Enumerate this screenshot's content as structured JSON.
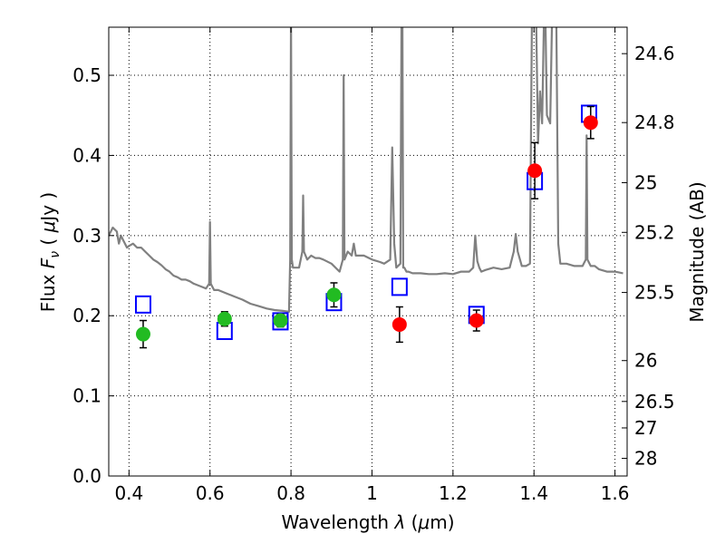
{
  "chart_data": {
    "type": "scatter",
    "xlabel": "Wavelength  λ (μm)",
    "ylabel": "Flux  F_ν  ( μJy )",
    "ylabel_right": "Magnitude (AB)",
    "xlim": [
      0.35,
      1.63
    ],
    "ylim": [
      0.0,
      0.56
    ],
    "grid": true,
    "x_ticks": [
      0.4,
      0.6,
      0.8,
      1.0,
      1.2,
      1.4,
      1.6
    ],
    "x_tick_labels": [
      "0.4",
      "0.6",
      "0.8",
      "1",
      "1.2",
      "1.4",
      "1.6"
    ],
    "y_ticks": [
      0.0,
      0.1,
      0.2,
      0.3,
      0.4,
      0.5
    ],
    "y_tick_labels": [
      "0.0",
      "0.1",
      "0.2",
      "0.3",
      "0.4",
      "0.5"
    ],
    "right_ticks": [
      {
        "label": "24.6",
        "flux": 0.527
      },
      {
        "label": "24.8",
        "flux": 0.441
      },
      {
        "label": "25",
        "flux": 0.366
      },
      {
        "label": "25.2",
        "flux": 0.304
      },
      {
        "label": "25.5",
        "flux": 0.229
      },
      {
        "label": "26",
        "flux": 0.144
      },
      {
        "label": "26.5",
        "flux": 0.093
      },
      {
        "label": "27",
        "flux": 0.06
      },
      {
        "label": "28",
        "flux": 0.022
      }
    ],
    "series": [
      {
        "kind": "line",
        "color": "#808080",
        "x": [
          0.35,
          0.36,
          0.37,
          0.375,
          0.38,
          0.385,
          0.39,
          0.395,
          0.4,
          0.41,
          0.42,
          0.43,
          0.44,
          0.45,
          0.46,
          0.47,
          0.48,
          0.49,
          0.5,
          0.51,
          0.52,
          0.53,
          0.54,
          0.55,
          0.56,
          0.57,
          0.58,
          0.59,
          0.598,
          0.6,
          0.602,
          0.61,
          0.62,
          0.64,
          0.66,
          0.68,
          0.7,
          0.72,
          0.74,
          0.76,
          0.78,
          0.795,
          0.798,
          0.8,
          0.802,
          0.805,
          0.81,
          0.82,
          0.828,
          0.83,
          0.832,
          0.84,
          0.85,
          0.86,
          0.87,
          0.88,
          0.9,
          0.92,
          0.928,
          0.93,
          0.932,
          0.94,
          0.95,
          0.955,
          0.96,
          0.98,
          1.0,
          1.02,
          1.03,
          1.045,
          1.05,
          1.055,
          1.06,
          1.07,
          1.073,
          1.075,
          1.077,
          1.08,
          1.085,
          1.09,
          1.1,
          1.12,
          1.14,
          1.16,
          1.18,
          1.2,
          1.22,
          1.24,
          1.25,
          1.255,
          1.26,
          1.265,
          1.27,
          1.28,
          1.3,
          1.32,
          1.34,
          1.35,
          1.355,
          1.36,
          1.37,
          1.38,
          1.39,
          1.395,
          1.4,
          1.405,
          1.41,
          1.415,
          1.42,
          1.425,
          1.428,
          1.432,
          1.44,
          1.445,
          1.45,
          1.455,
          1.46,
          1.465,
          1.48,
          1.5,
          1.52,
          1.528,
          1.53,
          1.532,
          1.54,
          1.55,
          1.56,
          1.58,
          1.6,
          1.62
        ],
        "y": [
          0.3,
          0.31,
          0.305,
          0.29,
          0.3,
          0.295,
          0.29,
          0.285,
          0.287,
          0.29,
          0.285,
          0.285,
          0.28,
          0.275,
          0.27,
          0.267,
          0.263,
          0.258,
          0.255,
          0.25,
          0.248,
          0.245,
          0.245,
          0.243,
          0.24,
          0.238,
          0.236,
          0.234,
          0.24,
          0.317,
          0.24,
          0.232,
          0.232,
          0.228,
          0.224,
          0.22,
          0.215,
          0.212,
          0.209,
          0.207,
          0.206,
          0.205,
          0.27,
          0.58,
          0.27,
          0.26,
          0.26,
          0.26,
          0.28,
          0.35,
          0.28,
          0.27,
          0.275,
          0.272,
          0.272,
          0.27,
          0.265,
          0.255,
          0.27,
          0.5,
          0.27,
          0.28,
          0.275,
          0.29,
          0.275,
          0.275,
          0.27,
          0.267,
          0.265,
          0.27,
          0.41,
          0.29,
          0.26,
          0.265,
          0.58,
          0.58,
          0.26,
          0.26,
          0.255,
          0.255,
          0.253,
          0.253,
          0.252,
          0.252,
          0.253,
          0.252,
          0.255,
          0.255,
          0.26,
          0.3,
          0.268,
          0.26,
          0.255,
          0.257,
          0.26,
          0.258,
          0.26,
          0.28,
          0.302,
          0.28,
          0.262,
          0.262,
          0.265,
          0.58,
          0.58,
          0.58,
          0.415,
          0.48,
          0.44,
          0.58,
          0.58,
          0.45,
          0.44,
          0.58,
          0.58,
          0.58,
          0.29,
          0.265,
          0.265,
          0.262,
          0.262,
          0.27,
          0.425,
          0.27,
          0.262,
          0.262,
          0.258,
          0.255,
          0.255,
          0.253
        ]
      },
      {
        "kind": "squares",
        "color": "#0000ff",
        "x": [
          0.435,
          0.636,
          0.774,
          0.906,
          1.068,
          1.258,
          1.402,
          1.536
        ],
        "y": [
          0.214,
          0.181,
          0.193,
          0.217,
          0.236,
          0.201,
          0.368,
          0.452
        ]
      },
      {
        "kind": "points",
        "color": "#22bb22",
        "x": [
          0.435,
          0.636,
          0.774,
          0.906
        ],
        "y": [
          0.177,
          0.196,
          0.194,
          0.226
        ],
        "err": [
          0.017,
          0.009,
          0.008,
          0.015
        ]
      },
      {
        "kind": "points",
        "color": "#ff0000",
        "x": [
          1.068,
          1.258,
          1.402,
          1.54
        ],
        "y": [
          0.189,
          0.194,
          0.381,
          0.441
        ],
        "err": [
          0.022,
          0.013,
          0.035,
          0.02
        ]
      }
    ]
  }
}
